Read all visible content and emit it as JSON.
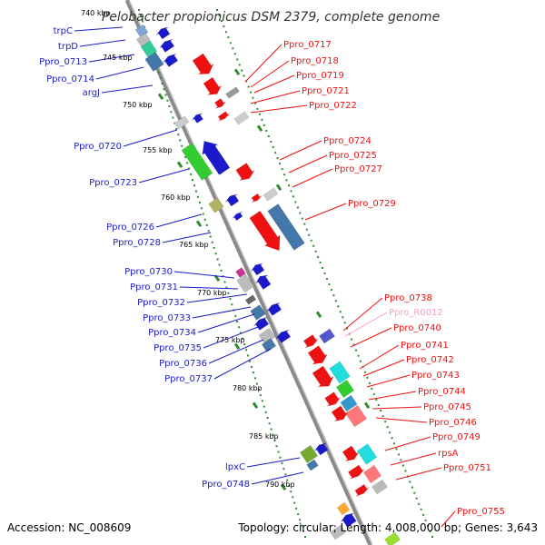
{
  "title": "Pelobacter propionicus DSM 2379, complete genome",
  "accession": "Accession: NC_008609",
  "summary": "Topology: circular; Length: 4,008,000 bp; Genes: 3,643",
  "colors": {
    "axis": "#8a8a8a",
    "tick": "#2e8b2e",
    "left_label": "#1a1acc",
    "right_label": "#ee1111",
    "rna_label": "#ff99cc"
  },
  "kbp_ticks": [
    "740 kbp",
    "745 kbp",
    "750 kbp",
    "755 kbp",
    "760 kbp",
    "765 kbp",
    "770 kbp",
    "775 kbp",
    "780 kbp",
    "785 kbp",
    "790 kbp"
  ],
  "left_genes": [
    "trpC",
    "trpD",
    "Ppro_0713",
    "Ppro_0714",
    "argJ",
    "Ppro_0720",
    "Ppro_0723",
    "Ppro_0726",
    "Ppro_0728",
    "Ppro_0730",
    "Ppro_0731",
    "Ppro_0732",
    "Ppro_0733",
    "Ppro_0734",
    "Ppro_0735",
    "Ppro_0736",
    "Ppro_0737",
    "lpxC",
    "Ppro_0748"
  ],
  "right_genes": [
    "Ppro_0717",
    "Ppro_0718",
    "Ppro_0719",
    "Ppro_0721",
    "Ppro_0722",
    "Ppro_0724",
    "Ppro_0725",
    "Ppro_0727",
    "Ppro_0729",
    "Ppro_0738",
    "Ppro_R0012",
    "Ppro_0740",
    "Ppro_0741",
    "Ppro_0742",
    "Ppro_0743",
    "Ppro_0744",
    "Ppro_0745",
    "Ppro_0746",
    "Ppro_0749",
    "rpsA",
    "Ppro_0751",
    "Ppro_0755"
  ]
}
